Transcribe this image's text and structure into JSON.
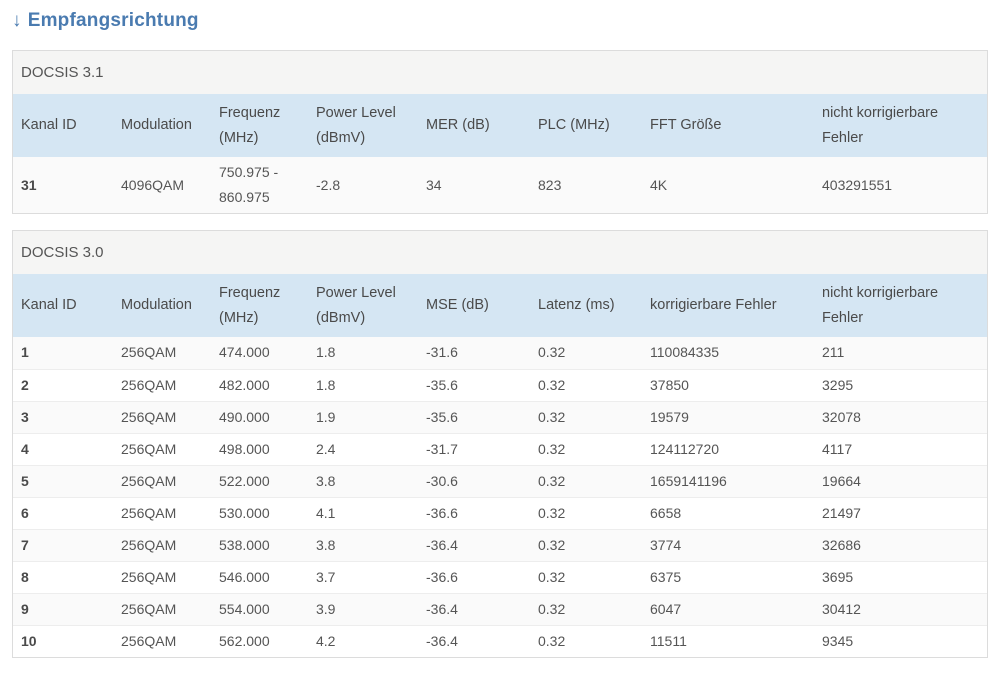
{
  "page": {
    "title_arrow": "↓",
    "title_text": "Empfangsrichtung"
  },
  "colors": {
    "title_blue": "#4a7bb0",
    "header_blue_bg": "#d5e6f3",
    "section_gray_bg": "#f5f5f4",
    "card_border": "#dcdcdc",
    "row_separator": "#ededed",
    "text": "#555555"
  },
  "tables": [
    {
      "section": "DOCSIS 3.1",
      "columns": [
        "Kanal ID",
        "Modulation",
        "Frequenz (MHz)",
        "Power Level (dBmV)",
        "MER (dB)",
        "PLC (MHz)",
        "FFT Größe",
        "nicht korrigierbare Fehler"
      ],
      "rows": [
        [
          "31",
          "4096QAM",
          "750.975 - 860.975",
          "-2.8",
          "34",
          "823",
          "4K",
          "403291551"
        ]
      ]
    },
    {
      "section": "DOCSIS 3.0",
      "columns": [
        "Kanal ID",
        "Modulation",
        "Frequenz (MHz)",
        "Power Level (dBmV)",
        "MSE (dB)",
        "Latenz (ms)",
        "korrigierbare Fehler",
        "nicht korrigierbare Fehler"
      ],
      "rows": [
        [
          "1",
          "256QAM",
          "474.000",
          "1.8",
          "-31.6",
          "0.32",
          "110084335",
          "211"
        ],
        [
          "2",
          "256QAM",
          "482.000",
          "1.8",
          "-35.6",
          "0.32",
          "37850",
          "3295"
        ],
        [
          "3",
          "256QAM",
          "490.000",
          "1.9",
          "-35.6",
          "0.32",
          "19579",
          "32078"
        ],
        [
          "4",
          "256QAM",
          "498.000",
          "2.4",
          "-31.7",
          "0.32",
          "124112720",
          "4117"
        ],
        [
          "5",
          "256QAM",
          "522.000",
          "3.8",
          "-30.6",
          "0.32",
          "1659141196",
          "19664"
        ],
        [
          "6",
          "256QAM",
          "530.000",
          "4.1",
          "-36.6",
          "0.32",
          "6658",
          "21497"
        ],
        [
          "7",
          "256QAM",
          "538.000",
          "3.8",
          "-36.4",
          "0.32",
          "3774",
          "32686"
        ],
        [
          "8",
          "256QAM",
          "546.000",
          "3.7",
          "-36.6",
          "0.32",
          "6375",
          "3695"
        ],
        [
          "9",
          "256QAM",
          "554.000",
          "3.9",
          "-36.4",
          "0.32",
          "6047",
          "30412"
        ],
        [
          "10",
          "256QAM",
          "562.000",
          "4.2",
          "-36.4",
          "0.32",
          "11511",
          "9345"
        ]
      ]
    }
  ]
}
